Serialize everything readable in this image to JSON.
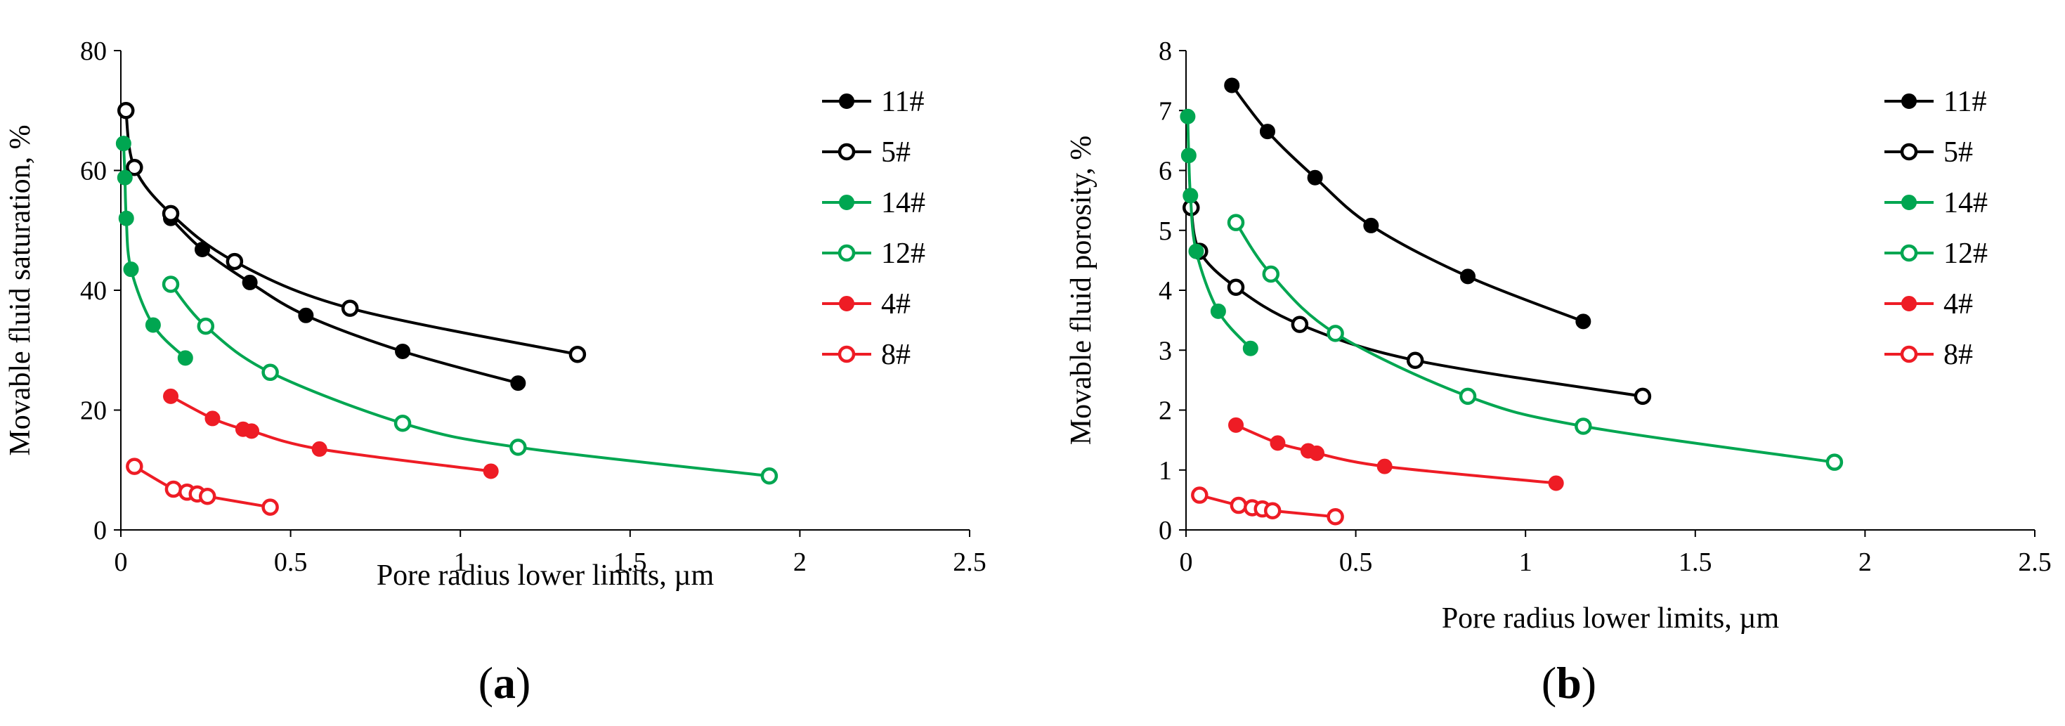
{
  "figure": {
    "panels": [
      {
        "open": "(",
        "letter": "a",
        "close": ")"
      },
      {
        "open": "(",
        "letter": "b",
        "close": ")"
      }
    ]
  },
  "chart_data": [
    {
      "type": "line",
      "id": "a",
      "xlabel": "Pore radius lower limits,  µm",
      "ylabel": "Movable fluid saturation, %",
      "xlim": [
        0,
        2.5
      ],
      "ylim": [
        0,
        80
      ],
      "xticks": [
        0,
        0.5,
        1,
        1.5,
        2,
        2.5
      ],
      "xtick_labels": [
        "0",
        "0.5",
        "1",
        "1.5",
        "2",
        "2.5"
      ],
      "yticks": [
        0,
        20,
        40,
        60,
        80
      ],
      "ytick_labels": [
        "0",
        "20",
        "40",
        "60",
        "80"
      ],
      "grid": false,
      "legend": "right",
      "series": [
        {
          "name": "11#",
          "color": "#000000",
          "marker": "filled",
          "x": [
            0.147,
            0.24,
            0.38,
            0.545,
            0.83,
            1.17
          ],
          "y": [
            52,
            46.8,
            41.3,
            35.8,
            29.8,
            24.5
          ]
        },
        {
          "name": "5#",
          "color": "#000000",
          "marker": "open",
          "x": [
            0.015,
            0.04,
            0.147,
            0.335,
            0.675,
            1.345
          ],
          "y": [
            70,
            60.5,
            52.8,
            44.8,
            37,
            29.3
          ]
        },
        {
          "name": "14#",
          "color": "#00a651",
          "marker": "filled",
          "x": [
            0.008,
            0.012,
            0.016,
            0.03,
            0.095,
            0.19
          ],
          "y": [
            64.5,
            58.8,
            52,
            43.5,
            34.2,
            28.7
          ]
        },
        {
          "name": "12#",
          "color": "#00a651",
          "marker": "open",
          "x": [
            0.147,
            0.25,
            0.44,
            0.83,
            1.17,
            1.91
          ],
          "y": [
            41,
            34,
            26.3,
            17.8,
            13.8,
            9
          ]
        },
        {
          "name": "4#",
          "color": "#ee1c25",
          "marker": "filled",
          "x": [
            0.147,
            0.27,
            0.36,
            0.385,
            0.585,
            1.09
          ],
          "y": [
            22.3,
            18.6,
            16.8,
            16.5,
            13.5,
            9.8
          ]
        },
        {
          "name": "8#",
          "color": "#ee1c25",
          "marker": "open",
          "x": [
            0.04,
            0.155,
            0.195,
            0.225,
            0.255,
            0.44
          ],
          "y": [
            10.6,
            6.8,
            6.3,
            6.0,
            5.6,
            3.8
          ]
        }
      ]
    },
    {
      "type": "line",
      "id": "b",
      "xlabel": "Pore radius lower limits,  µm",
      "ylabel": "Movable fluid porosity, %",
      "xlim": [
        0,
        2.5
      ],
      "ylim": [
        0,
        8
      ],
      "xticks": [
        0,
        0.5,
        1,
        1.5,
        2,
        2.5
      ],
      "xtick_labels": [
        "0",
        "0.5",
        "1",
        "1.5",
        "2",
        "2.5"
      ],
      "yticks": [
        0,
        1,
        2,
        3,
        4,
        5,
        6,
        7,
        8
      ],
      "ytick_labels": [
        "0",
        "1",
        "2",
        "3",
        "4",
        "5",
        "6",
        "7",
        "8"
      ],
      "grid": false,
      "legend": "right",
      "series": [
        {
          "name": "11#",
          "color": "#000000",
          "marker": "filled",
          "x": [
            0.135,
            0.24,
            0.38,
            0.545,
            0.83,
            1.17
          ],
          "y": [
            7.42,
            6.65,
            5.88,
            5.08,
            4.23,
            3.48
          ]
        },
        {
          "name": "5#",
          "color": "#000000",
          "marker": "open",
          "x": [
            0.015,
            0.04,
            0.147,
            0.335,
            0.675,
            1.345
          ],
          "y": [
            5.38,
            4.65,
            4.05,
            3.43,
            2.83,
            2.23
          ]
        },
        {
          "name": "14#",
          "color": "#00a651",
          "marker": "filled",
          "x": [
            0.005,
            0.008,
            0.013,
            0.03,
            0.095,
            0.19
          ],
          "y": [
            6.9,
            6.25,
            5.58,
            4.65,
            3.65,
            3.03
          ]
        },
        {
          "name": "12#",
          "color": "#00a651",
          "marker": "open",
          "x": [
            0.147,
            0.25,
            0.44,
            0.83,
            1.17,
            1.91
          ],
          "y": [
            5.13,
            4.27,
            3.28,
            2.23,
            1.73,
            1.13
          ]
        },
        {
          "name": "4#",
          "color": "#ee1c25",
          "marker": "filled",
          "x": [
            0.147,
            0.27,
            0.36,
            0.385,
            0.585,
            1.09
          ],
          "y": [
            1.75,
            1.45,
            1.32,
            1.28,
            1.06,
            0.78
          ]
        },
        {
          "name": "8#",
          "color": "#ee1c25",
          "marker": "open",
          "x": [
            0.04,
            0.155,
            0.195,
            0.225,
            0.255,
            0.44
          ],
          "y": [
            0.58,
            0.41,
            0.37,
            0.35,
            0.32,
            0.22
          ]
        }
      ]
    }
  ]
}
